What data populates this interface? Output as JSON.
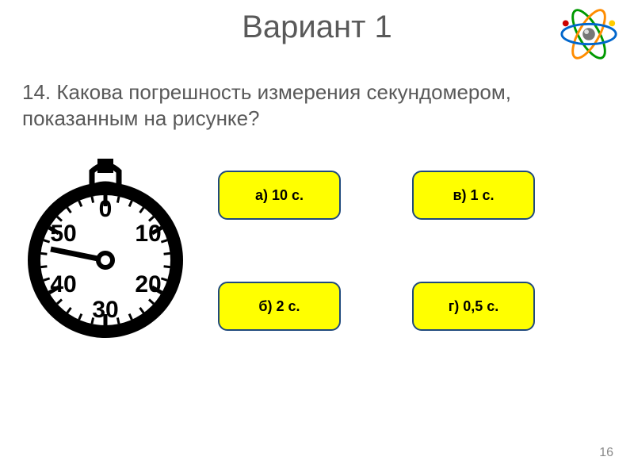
{
  "title": "Вариант 1",
  "question": "14. Какова погрешность измерения секундомером, показанным на рисунке?",
  "answers": {
    "a": "а) 10 с.",
    "b": "б) 2 с.",
    "v": "в) 1 с.",
    "g": "г) 0,5 с."
  },
  "button_style": {
    "fill": "#ffff00",
    "border": "#1f497d"
  },
  "stopwatch": {
    "ticks": [
      "0",
      "10",
      "20",
      "30",
      "40",
      "50"
    ]
  },
  "page_number": "16",
  "colors": {
    "text": "#595959",
    "bg": "#ffffff"
  }
}
